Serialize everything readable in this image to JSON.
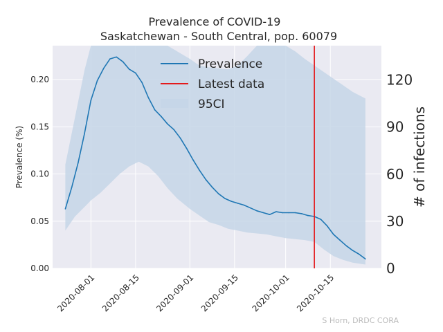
{
  "chart_data": {
    "type": "line",
    "title": "Prevalence of COVID-19",
    "subtitle": "Saskatchewan - South Central, pop. 60079",
    "ylabel": "Prevalence (%)",
    "y2label": "# of infections",
    "ylim": [
      0,
      0.236
    ],
    "y2lim": [
      0,
      141.8
    ],
    "xlim": [
      "2020-07-20",
      "2020-10-31"
    ],
    "yticks": [
      "0.00",
      "0.05",
      "0.10",
      "0.15",
      "0.20"
    ],
    "y2ticks": [
      "0",
      "30",
      "60",
      "90",
      "120"
    ],
    "xticks": [
      "2020-08-01",
      "2020-08-15",
      "2020-09-01",
      "2020-09-15",
      "2020-10-01",
      "2020-10-15"
    ],
    "grid": true,
    "legend_position": "top-center",
    "credit": "S Horn, DRDC CORA",
    "colors": {
      "prevalence": "#1f77b4",
      "latest": "#e41a1c",
      "ci": "#c6d6e8",
      "background": "#eaeaf2"
    },
    "series": [
      {
        "name": "Prevalence",
        "x": [
          "2020-07-24",
          "2020-07-26",
          "2020-07-28",
          "2020-07-30",
          "2020-08-01",
          "2020-08-03",
          "2020-08-05",
          "2020-08-07",
          "2020-08-09",
          "2020-08-11",
          "2020-08-13",
          "2020-08-15",
          "2020-08-17",
          "2020-08-19",
          "2020-08-21",
          "2020-08-23",
          "2020-08-25",
          "2020-08-27",
          "2020-08-29",
          "2020-08-31",
          "2020-09-02",
          "2020-09-04",
          "2020-09-06",
          "2020-09-08",
          "2020-09-10",
          "2020-09-12",
          "2020-09-14",
          "2020-09-16",
          "2020-09-18",
          "2020-09-20",
          "2020-09-22",
          "2020-09-24",
          "2020-09-26",
          "2020-09-28",
          "2020-09-30",
          "2020-10-02",
          "2020-10-04",
          "2020-10-06",
          "2020-10-08",
          "2020-10-10",
          "2020-10-12",
          "2020-10-14",
          "2020-10-16",
          "2020-10-18",
          "2020-10-20",
          "2020-10-22",
          "2020-10-24",
          "2020-10-26"
        ],
        "values": [
          0.063,
          0.086,
          0.112,
          0.143,
          0.178,
          0.199,
          0.212,
          0.222,
          0.224,
          0.219,
          0.211,
          0.207,
          0.197,
          0.181,
          0.168,
          0.161,
          0.153,
          0.147,
          0.138,
          0.127,
          0.115,
          0.104,
          0.094,
          0.086,
          0.079,
          0.074,
          0.071,
          0.069,
          0.067,
          0.064,
          0.061,
          0.059,
          0.057,
          0.06,
          0.059,
          0.059,
          0.059,
          0.058,
          0.056,
          0.055,
          0.052,
          0.045,
          0.036,
          0.03,
          0.024,
          0.019,
          0.015,
          0.01
        ]
      },
      {
        "name": "95CI",
        "x": [
          "2020-07-24",
          "2020-07-27",
          "2020-07-30",
          "2020-08-01",
          "2020-08-04",
          "2020-08-07",
          "2020-08-10",
          "2020-08-13",
          "2020-08-16",
          "2020-08-19",
          "2020-08-22",
          "2020-08-25",
          "2020-08-28",
          "2020-09-01",
          "2020-09-04",
          "2020-09-07",
          "2020-09-10",
          "2020-09-13",
          "2020-09-16",
          "2020-09-19",
          "2020-09-22",
          "2020-09-25",
          "2020-09-28",
          "2020-10-01",
          "2020-10-04",
          "2020-10-07",
          "2020-10-10",
          "2020-10-13",
          "2020-10-16",
          "2020-10-19",
          "2020-10-22",
          "2020-10-26"
        ],
        "lower": [
          0.04,
          0.055,
          0.065,
          0.072,
          0.08,
          0.09,
          0.1,
          0.108,
          0.113,
          0.108,
          0.098,
          0.085,
          0.074,
          0.063,
          0.056,
          0.049,
          0.046,
          0.042,
          0.04,
          0.038,
          0.037,
          0.036,
          0.034,
          0.032,
          0.031,
          0.03,
          0.028,
          0.02,
          0.013,
          0.009,
          0.006,
          0.004
        ],
        "upper": [
          0.11,
          0.16,
          0.21,
          0.236,
          0.236,
          0.236,
          0.236,
          0.236,
          0.236,
          0.236,
          0.236,
          0.236,
          0.23,
          0.222,
          0.215,
          0.213,
          0.212,
          0.211,
          0.215,
          0.225,
          0.236,
          0.236,
          0.236,
          0.236,
          0.23,
          0.222,
          0.215,
          0.208,
          0.201,
          0.194,
          0.187,
          0.18
        ]
      }
    ],
    "latest_data": {
      "name": "Latest data",
      "x": "2020-10-10"
    }
  }
}
